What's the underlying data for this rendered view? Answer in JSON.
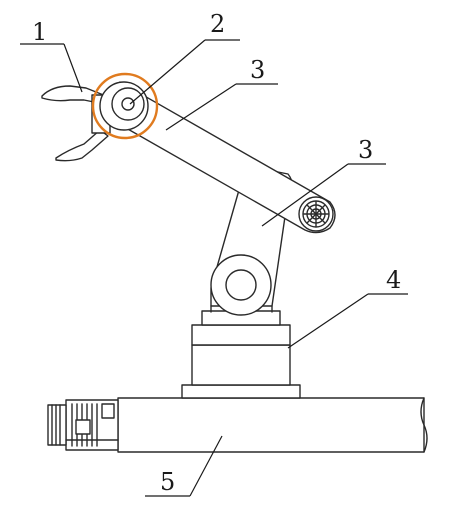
{
  "labels": {
    "gripper": "1",
    "rotary_joint": "2",
    "upper_arm": "3",
    "lower_arm": "3",
    "base_column": "4",
    "track_rail": "5"
  },
  "colors": {
    "line": "#2a2a2a",
    "highlight": "#e07b1f",
    "background": "#ffffff"
  }
}
